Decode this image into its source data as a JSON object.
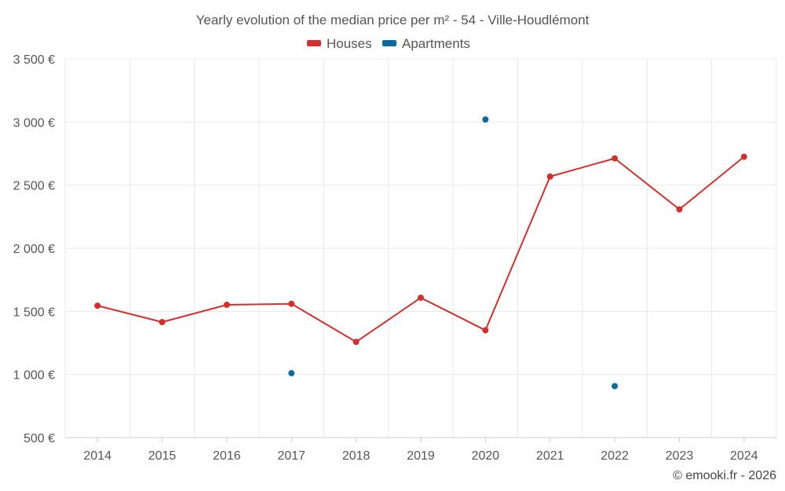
{
  "chart_data": {
    "type": "line",
    "title": "Yearly evolution of the median price per m² - 54 - Ville-Houdlémont",
    "categories": [
      "2014",
      "2015",
      "2016",
      "2017",
      "2018",
      "2019",
      "2020",
      "2021",
      "2022",
      "2023",
      "2024"
    ],
    "series": [
      {
        "name": "Houses",
        "color": "#d32f2f",
        "values": [
          1545,
          1415,
          1552,
          1560,
          1258,
          1608,
          1350,
          2568,
          2712,
          2308,
          2725
        ]
      },
      {
        "name": "Apartments",
        "color": "#0a6aa1",
        "values": [
          null,
          null,
          null,
          1010,
          null,
          null,
          3020,
          null,
          908,
          null,
          null
        ]
      }
    ],
    "ylim": [
      500,
      3500
    ],
    "yticks": [
      500,
      1000,
      1500,
      2000,
      2500,
      3000,
      3500
    ],
    "ytick_labels": [
      "500 €",
      "1 000 €",
      "1 500 €",
      "2 000 €",
      "2 500 €",
      "3 000 €",
      "3 500 €"
    ],
    "legend_position": "top-center",
    "grid": true,
    "credit": "© emooki.fr - 2026"
  }
}
